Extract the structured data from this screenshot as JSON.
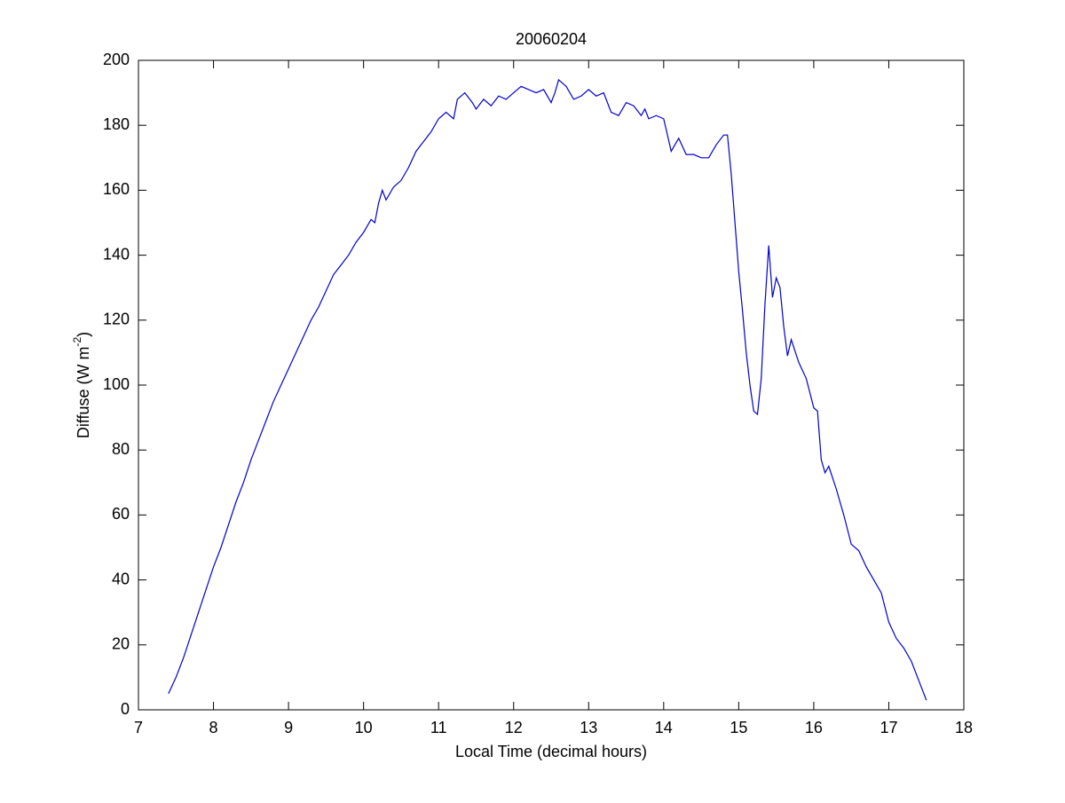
{
  "chart_data": {
    "type": "line",
    "title": "20060204",
    "xlabel": "Local Time (decimal hours)",
    "ylabel": [
      "Diffuse (W m",
      "-2",
      ")"
    ],
    "x": [
      7.4,
      7.5,
      7.6,
      7.7,
      7.8,
      7.9,
      8.0,
      8.1,
      8.2,
      8.3,
      8.4,
      8.5,
      8.6,
      8.7,
      8.8,
      8.9,
      9.0,
      9.1,
      9.2,
      9.3,
      9.4,
      9.5,
      9.6,
      9.7,
      9.8,
      9.9,
      10.0,
      10.1,
      10.15,
      10.2,
      10.25,
      10.3,
      10.4,
      10.5,
      10.6,
      10.7,
      10.8,
      10.9,
      11.0,
      11.1,
      11.2,
      11.25,
      11.35,
      11.45,
      11.5,
      11.6,
      11.7,
      11.8,
      11.9,
      12.0,
      12.1,
      12.2,
      12.3,
      12.4,
      12.5,
      12.55,
      12.6,
      12.7,
      12.8,
      12.9,
      13.0,
      13.1,
      13.2,
      13.3,
      13.4,
      13.5,
      13.6,
      13.7,
      13.75,
      13.8,
      13.9,
      14.0,
      14.1,
      14.2,
      14.3,
      14.4,
      14.5,
      14.6,
      14.7,
      14.8,
      14.85,
      14.9,
      14.95,
      15.0,
      15.05,
      15.1,
      15.15,
      15.2,
      15.25,
      15.3,
      15.35,
      15.4,
      15.45,
      15.5,
      15.55,
      15.6,
      15.65,
      15.7,
      15.8,
      15.9,
      16.0,
      16.05,
      16.1,
      16.15,
      16.2,
      16.3,
      16.4,
      16.5,
      16.6,
      16.7,
      16.8,
      16.9,
      17.0,
      17.1,
      17.2,
      17.3,
      17.4,
      17.5
    ],
    "series": [
      {
        "color": "#0000cc",
        "values": [
          5,
          10,
          16,
          23,
          30,
          37,
          44,
          50,
          57,
          64,
          70,
          77,
          83,
          89,
          95,
          100,
          105,
          110,
          115,
          120,
          124,
          129,
          134,
          137,
          140,
          144,
          147,
          151,
          150,
          156,
          160,
          157,
          161,
          163,
          167,
          172,
          175,
          178,
          182,
          184,
          182,
          188,
          190,
          187,
          185,
          188,
          186,
          189,
          188,
          190,
          192,
          191,
          190,
          191,
          187,
          190,
          194,
          192,
          188,
          189,
          191,
          189,
          190,
          184,
          183,
          187,
          186,
          183,
          185,
          182,
          183,
          182,
          172,
          176,
          171,
          171,
          170,
          170,
          174,
          177,
          177,
          165,
          150,
          135,
          123,
          110,
          100,
          92,
          91,
          102,
          125,
          143,
          127,
          133,
          130,
          118,
          109,
          114,
          107,
          102,
          93,
          92,
          77,
          73,
          75,
          68,
          60,
          51,
          49,
          44,
          40,
          36,
          27,
          22,
          19,
          15,
          9,
          3
        ]
      }
    ],
    "xlim": [
      7,
      18
    ],
    "xticks": [
      7,
      8,
      9,
      10,
      11,
      12,
      13,
      14,
      15,
      16,
      17,
      18
    ],
    "ylim": [
      0,
      200
    ],
    "yticks": [
      0,
      20,
      40,
      60,
      80,
      100,
      120,
      140,
      160,
      180,
      200
    ]
  }
}
